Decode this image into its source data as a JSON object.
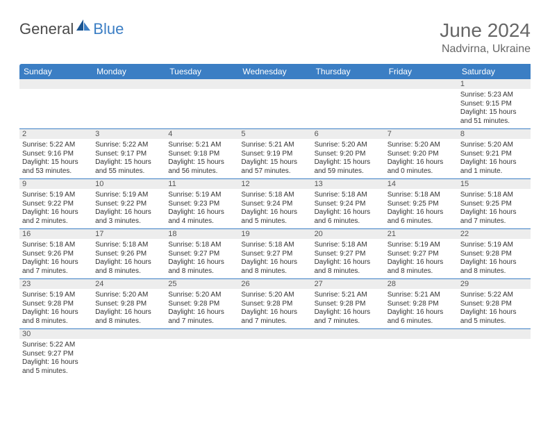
{
  "logo": {
    "general": "General",
    "blue": "Blue"
  },
  "title": "June 2024",
  "location": "Nadvirna, Ukraine",
  "headers": [
    "Sunday",
    "Monday",
    "Tuesday",
    "Wednesday",
    "Thursday",
    "Friday",
    "Saturday"
  ],
  "colors": {
    "header_bg": "#3b7ec4",
    "header_text": "#ffffff",
    "daynum_bg": "#ededed",
    "border": "#3b7ec4"
  },
  "weeks": [
    [
      null,
      null,
      null,
      null,
      null,
      null,
      {
        "n": "1",
        "sr": "Sunrise: 5:23 AM",
        "ss": "Sunset: 9:15 PM",
        "d1": "Daylight: 15 hours",
        "d2": "and 51 minutes."
      }
    ],
    [
      {
        "n": "2",
        "sr": "Sunrise: 5:22 AM",
        "ss": "Sunset: 9:16 PM",
        "d1": "Daylight: 15 hours",
        "d2": "and 53 minutes."
      },
      {
        "n": "3",
        "sr": "Sunrise: 5:22 AM",
        "ss": "Sunset: 9:17 PM",
        "d1": "Daylight: 15 hours",
        "d2": "and 55 minutes."
      },
      {
        "n": "4",
        "sr": "Sunrise: 5:21 AM",
        "ss": "Sunset: 9:18 PM",
        "d1": "Daylight: 15 hours",
        "d2": "and 56 minutes."
      },
      {
        "n": "5",
        "sr": "Sunrise: 5:21 AM",
        "ss": "Sunset: 9:19 PM",
        "d1": "Daylight: 15 hours",
        "d2": "and 57 minutes."
      },
      {
        "n": "6",
        "sr": "Sunrise: 5:20 AM",
        "ss": "Sunset: 9:20 PM",
        "d1": "Daylight: 15 hours",
        "d2": "and 59 minutes."
      },
      {
        "n": "7",
        "sr": "Sunrise: 5:20 AM",
        "ss": "Sunset: 9:20 PM",
        "d1": "Daylight: 16 hours",
        "d2": "and 0 minutes."
      },
      {
        "n": "8",
        "sr": "Sunrise: 5:20 AM",
        "ss": "Sunset: 9:21 PM",
        "d1": "Daylight: 16 hours",
        "d2": "and 1 minute."
      }
    ],
    [
      {
        "n": "9",
        "sr": "Sunrise: 5:19 AM",
        "ss": "Sunset: 9:22 PM",
        "d1": "Daylight: 16 hours",
        "d2": "and 2 minutes."
      },
      {
        "n": "10",
        "sr": "Sunrise: 5:19 AM",
        "ss": "Sunset: 9:22 PM",
        "d1": "Daylight: 16 hours",
        "d2": "and 3 minutes."
      },
      {
        "n": "11",
        "sr": "Sunrise: 5:19 AM",
        "ss": "Sunset: 9:23 PM",
        "d1": "Daylight: 16 hours",
        "d2": "and 4 minutes."
      },
      {
        "n": "12",
        "sr": "Sunrise: 5:18 AM",
        "ss": "Sunset: 9:24 PM",
        "d1": "Daylight: 16 hours",
        "d2": "and 5 minutes."
      },
      {
        "n": "13",
        "sr": "Sunrise: 5:18 AM",
        "ss": "Sunset: 9:24 PM",
        "d1": "Daylight: 16 hours",
        "d2": "and 6 minutes."
      },
      {
        "n": "14",
        "sr": "Sunrise: 5:18 AM",
        "ss": "Sunset: 9:25 PM",
        "d1": "Daylight: 16 hours",
        "d2": "and 6 minutes."
      },
      {
        "n": "15",
        "sr": "Sunrise: 5:18 AM",
        "ss": "Sunset: 9:25 PM",
        "d1": "Daylight: 16 hours",
        "d2": "and 7 minutes."
      }
    ],
    [
      {
        "n": "16",
        "sr": "Sunrise: 5:18 AM",
        "ss": "Sunset: 9:26 PM",
        "d1": "Daylight: 16 hours",
        "d2": "and 7 minutes."
      },
      {
        "n": "17",
        "sr": "Sunrise: 5:18 AM",
        "ss": "Sunset: 9:26 PM",
        "d1": "Daylight: 16 hours",
        "d2": "and 8 minutes."
      },
      {
        "n": "18",
        "sr": "Sunrise: 5:18 AM",
        "ss": "Sunset: 9:27 PM",
        "d1": "Daylight: 16 hours",
        "d2": "and 8 minutes."
      },
      {
        "n": "19",
        "sr": "Sunrise: 5:18 AM",
        "ss": "Sunset: 9:27 PM",
        "d1": "Daylight: 16 hours",
        "d2": "and 8 minutes."
      },
      {
        "n": "20",
        "sr": "Sunrise: 5:18 AM",
        "ss": "Sunset: 9:27 PM",
        "d1": "Daylight: 16 hours",
        "d2": "and 8 minutes."
      },
      {
        "n": "21",
        "sr": "Sunrise: 5:19 AM",
        "ss": "Sunset: 9:27 PM",
        "d1": "Daylight: 16 hours",
        "d2": "and 8 minutes."
      },
      {
        "n": "22",
        "sr": "Sunrise: 5:19 AM",
        "ss": "Sunset: 9:28 PM",
        "d1": "Daylight: 16 hours",
        "d2": "and 8 minutes."
      }
    ],
    [
      {
        "n": "23",
        "sr": "Sunrise: 5:19 AM",
        "ss": "Sunset: 9:28 PM",
        "d1": "Daylight: 16 hours",
        "d2": "and 8 minutes."
      },
      {
        "n": "24",
        "sr": "Sunrise: 5:20 AM",
        "ss": "Sunset: 9:28 PM",
        "d1": "Daylight: 16 hours",
        "d2": "and 8 minutes."
      },
      {
        "n": "25",
        "sr": "Sunrise: 5:20 AM",
        "ss": "Sunset: 9:28 PM",
        "d1": "Daylight: 16 hours",
        "d2": "and 7 minutes."
      },
      {
        "n": "26",
        "sr": "Sunrise: 5:20 AM",
        "ss": "Sunset: 9:28 PM",
        "d1": "Daylight: 16 hours",
        "d2": "and 7 minutes."
      },
      {
        "n": "27",
        "sr": "Sunrise: 5:21 AM",
        "ss": "Sunset: 9:28 PM",
        "d1": "Daylight: 16 hours",
        "d2": "and 7 minutes."
      },
      {
        "n": "28",
        "sr": "Sunrise: 5:21 AM",
        "ss": "Sunset: 9:28 PM",
        "d1": "Daylight: 16 hours",
        "d2": "and 6 minutes."
      },
      {
        "n": "29",
        "sr": "Sunrise: 5:22 AM",
        "ss": "Sunset: 9:28 PM",
        "d1": "Daylight: 16 hours",
        "d2": "and 5 minutes."
      }
    ],
    [
      {
        "n": "30",
        "sr": "Sunrise: 5:22 AM",
        "ss": "Sunset: 9:27 PM",
        "d1": "Daylight: 16 hours",
        "d2": "and 5 minutes."
      },
      null,
      null,
      null,
      null,
      null,
      null
    ]
  ]
}
